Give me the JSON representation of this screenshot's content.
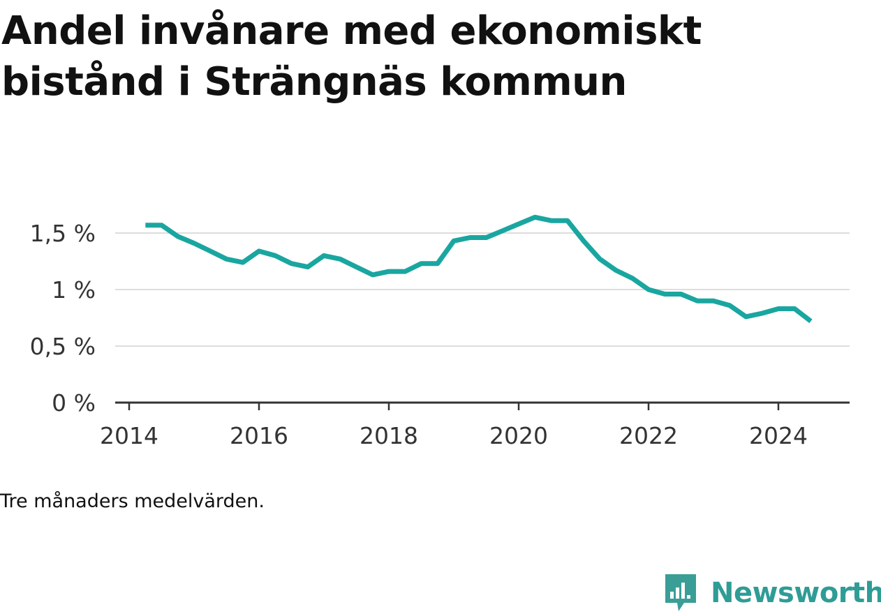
{
  "title": "Andel invånare med ekonomiskt bistånd i Strängnäs kommun",
  "note": "Tre månaders medelvärden.",
  "brand": {
    "name": "Newsworthy",
    "color": "#2f9c96",
    "icon": "newsworthy-logo-icon"
  },
  "colors": {
    "line": "#1aa6a0",
    "grid": "#dddddd",
    "axis": "#333333"
  },
  "chart_data": {
    "type": "line",
    "title": "Andel invånare med ekonomiskt bistånd i Strängnäs kommun",
    "xlabel": "",
    "ylabel": "",
    "xlim": [
      2014.0,
      2025.0
    ],
    "ylim": [
      0,
      1.5
    ],
    "grid": true,
    "legend": "none",
    "x_ticks": [
      {
        "value": 2014,
        "label": "2014"
      },
      {
        "value": 2016,
        "label": "2016"
      },
      {
        "value": 2018,
        "label": "2018"
      },
      {
        "value": 2020,
        "label": "2020"
      },
      {
        "value": 2022,
        "label": "2022"
      },
      {
        "value": 2024,
        "label": "2024"
      }
    ],
    "y_ticks": [
      {
        "value": 0,
        "label": "0 %"
      },
      {
        "value": 0.5,
        "label": "0,5 %"
      },
      {
        "value": 1.0,
        "label": "1 %"
      },
      {
        "value": 1.5,
        "label": "1,5 %"
      }
    ],
    "series": [
      {
        "x": [
          "2014-04",
          "2014-07",
          "2014-10",
          "2015-01",
          "2015-04",
          "2015-07",
          "2015-10",
          "2016-01",
          "2016-04",
          "2016-07",
          "2016-10",
          "2017-01",
          "2017-04",
          "2017-07",
          "2017-10",
          "2018-01",
          "2018-04",
          "2018-07",
          "2018-10",
          "2019-01",
          "2019-04",
          "2019-07",
          "2019-10",
          "2020-01",
          "2020-04",
          "2020-07",
          "2020-10",
          "2021-01",
          "2021-04",
          "2021-07",
          "2021-10",
          "2022-01",
          "2022-04",
          "2022-07",
          "2022-10",
          "2023-01",
          "2023-04",
          "2023-07",
          "2023-10",
          "2024-01",
          "2024-04",
          "2024-07"
        ],
        "values": [
          1.57,
          1.57,
          1.47,
          1.41,
          1.34,
          1.27,
          1.24,
          1.34,
          1.3,
          1.23,
          1.2,
          1.3,
          1.27,
          1.2,
          1.13,
          1.16,
          1.16,
          1.23,
          1.23,
          1.43,
          1.46,
          1.46,
          1.52,
          1.58,
          1.64,
          1.61,
          1.61,
          1.43,
          1.27,
          1.17,
          1.1,
          1.0,
          0.96,
          0.96,
          0.9,
          0.9,
          0.86,
          0.76,
          0.79,
          0.83,
          0.83,
          0.72
        ]
      }
    ]
  }
}
